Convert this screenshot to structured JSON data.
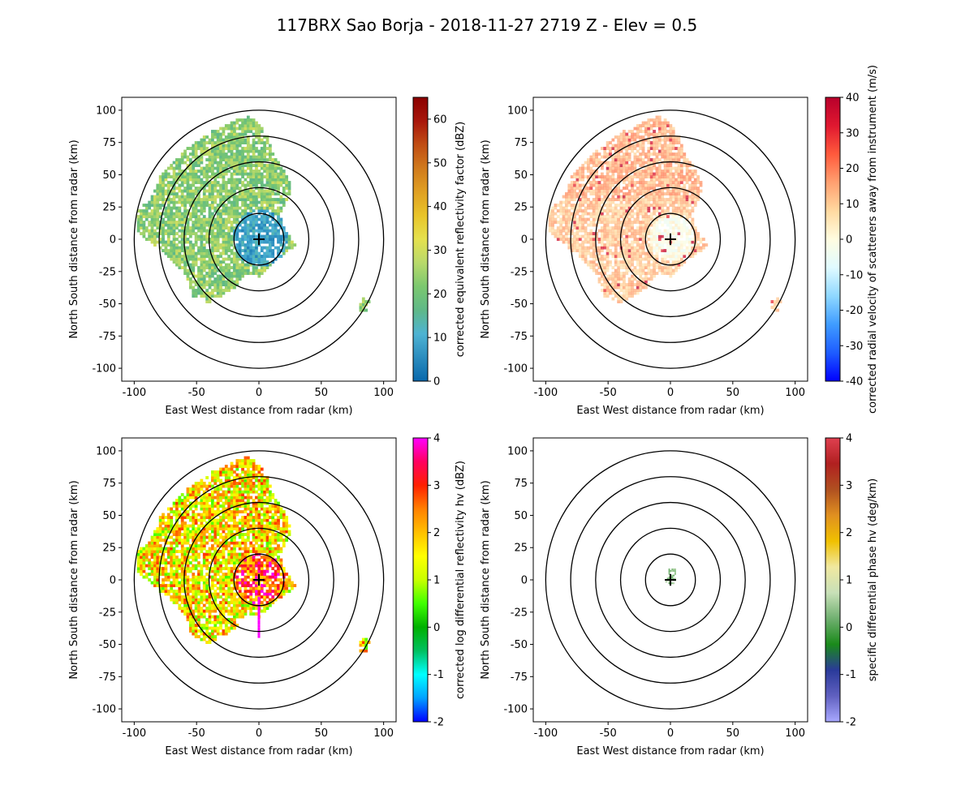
{
  "title": "117BRX Sao Borja - 2018-11-27 2719 Z -  Elev = 0.5",
  "chart_data": [
    {
      "type": "heatmap",
      "xlabel": "East West distance from radar (km)",
      "ylabel": "North South distance from radar (km)",
      "xlim": [
        -110,
        110
      ],
      "ylim": [
        -110,
        110
      ],
      "xticks": [
        -100,
        -50,
        0,
        50,
        100
      ],
      "yticks": [
        -100,
        -75,
        -50,
        -25,
        0,
        25,
        50,
        75,
        100
      ],
      "range_rings_km": [
        20,
        40,
        60,
        80,
        100
      ],
      "colorbar": {
        "label": "corrected equivalent reflectivity factor (dBZ)",
        "min": 0,
        "max": 65,
        "ticks": [
          0,
          10,
          20,
          30,
          40,
          50,
          60
        ],
        "colors": [
          "#0868ac",
          "#2b8cbe",
          "#4eb3d3",
          "#5fb888",
          "#7bc86f",
          "#b8d96b",
          "#e5e14e",
          "#e8c42a",
          "#e0a022",
          "#d07a1c",
          "#c04d14",
          "#a8160b",
          "#8a0000"
        ]
      },
      "echo_field": "reflectivity"
    },
    {
      "type": "heatmap",
      "xlabel": "East West distance from radar (km)",
      "ylabel": "North South distance from radar (km)",
      "xlim": [
        -110,
        110
      ],
      "ylim": [
        -110,
        110
      ],
      "xticks": [
        -100,
        -50,
        0,
        50,
        100
      ],
      "yticks": [
        -100,
        -75,
        -50,
        -25,
        0,
        25,
        50,
        75,
        100
      ],
      "range_rings_km": [
        20,
        40,
        60,
        80,
        100
      ],
      "colorbar": {
        "label": "corrected radial velocity of scatterers away from instrument (m/s)",
        "min": -40,
        "max": 40,
        "ticks": [
          -40,
          -30,
          -20,
          -10,
          0,
          10,
          20,
          30,
          40
        ],
        "colors": [
          "#0000ff",
          "#1e5cff",
          "#3f9cff",
          "#8fd8ff",
          "#e0fbff",
          "#fffce0",
          "#ffd9a0",
          "#ffa070",
          "#ff5a3c",
          "#e01830",
          "#b8002b"
        ]
      },
      "echo_field": "velocity"
    },
    {
      "type": "heatmap",
      "xlabel": "East West distance from radar (km)",
      "ylabel": "North South distance from radar (km)",
      "xlim": [
        -110,
        110
      ],
      "ylim": [
        -110,
        110
      ],
      "xticks": [
        -100,
        -50,
        0,
        50,
        100
      ],
      "yticks": [
        -100,
        -75,
        -50,
        -25,
        0,
        25,
        50,
        75,
        100
      ],
      "range_rings_km": [
        20,
        40,
        60,
        80,
        100
      ],
      "colorbar": {
        "label": "corrected log differential reflectivity hv (dBZ)",
        "min": -2,
        "max": 4,
        "ticks": [
          -2,
          -1,
          0,
          1,
          2,
          3,
          4
        ],
        "colors": [
          "#0000ff",
          "#00a0ff",
          "#00ffff",
          "#00c060",
          "#00b000",
          "#40ff00",
          "#c8ff00",
          "#ffff00",
          "#ffc000",
          "#ff8000",
          "#ff2000",
          "#ff0060",
          "#ff00ff"
        ]
      },
      "echo_field": "zdr"
    },
    {
      "type": "heatmap",
      "xlabel": "East West distance from radar (km)",
      "ylabel": "North South distance from radar (km)",
      "xlim": [
        -110,
        110
      ],
      "ylim": [
        -110,
        110
      ],
      "xticks": [
        -100,
        -50,
        0,
        50,
        100
      ],
      "yticks": [
        -100,
        -75,
        -50,
        -25,
        0,
        25,
        50,
        75,
        100
      ],
      "range_rings_km": [
        20,
        40,
        60,
        80,
        100
      ],
      "colorbar": {
        "label": "specific differential phase hv (deg/km)",
        "min": -2,
        "max": 4,
        "ticks": [
          -2,
          -1,
          0,
          1,
          2,
          3,
          4
        ],
        "colors": [
          "#a8a8ff",
          "#6060c0",
          "#2a3a9a",
          "#1a8a1a",
          "#70b070",
          "#c8e0b8",
          "#f0e8a0",
          "#f0c000",
          "#e09020",
          "#b05020",
          "#b02020",
          "#e04050"
        ]
      },
      "echo_field": "kdp"
    }
  ]
}
